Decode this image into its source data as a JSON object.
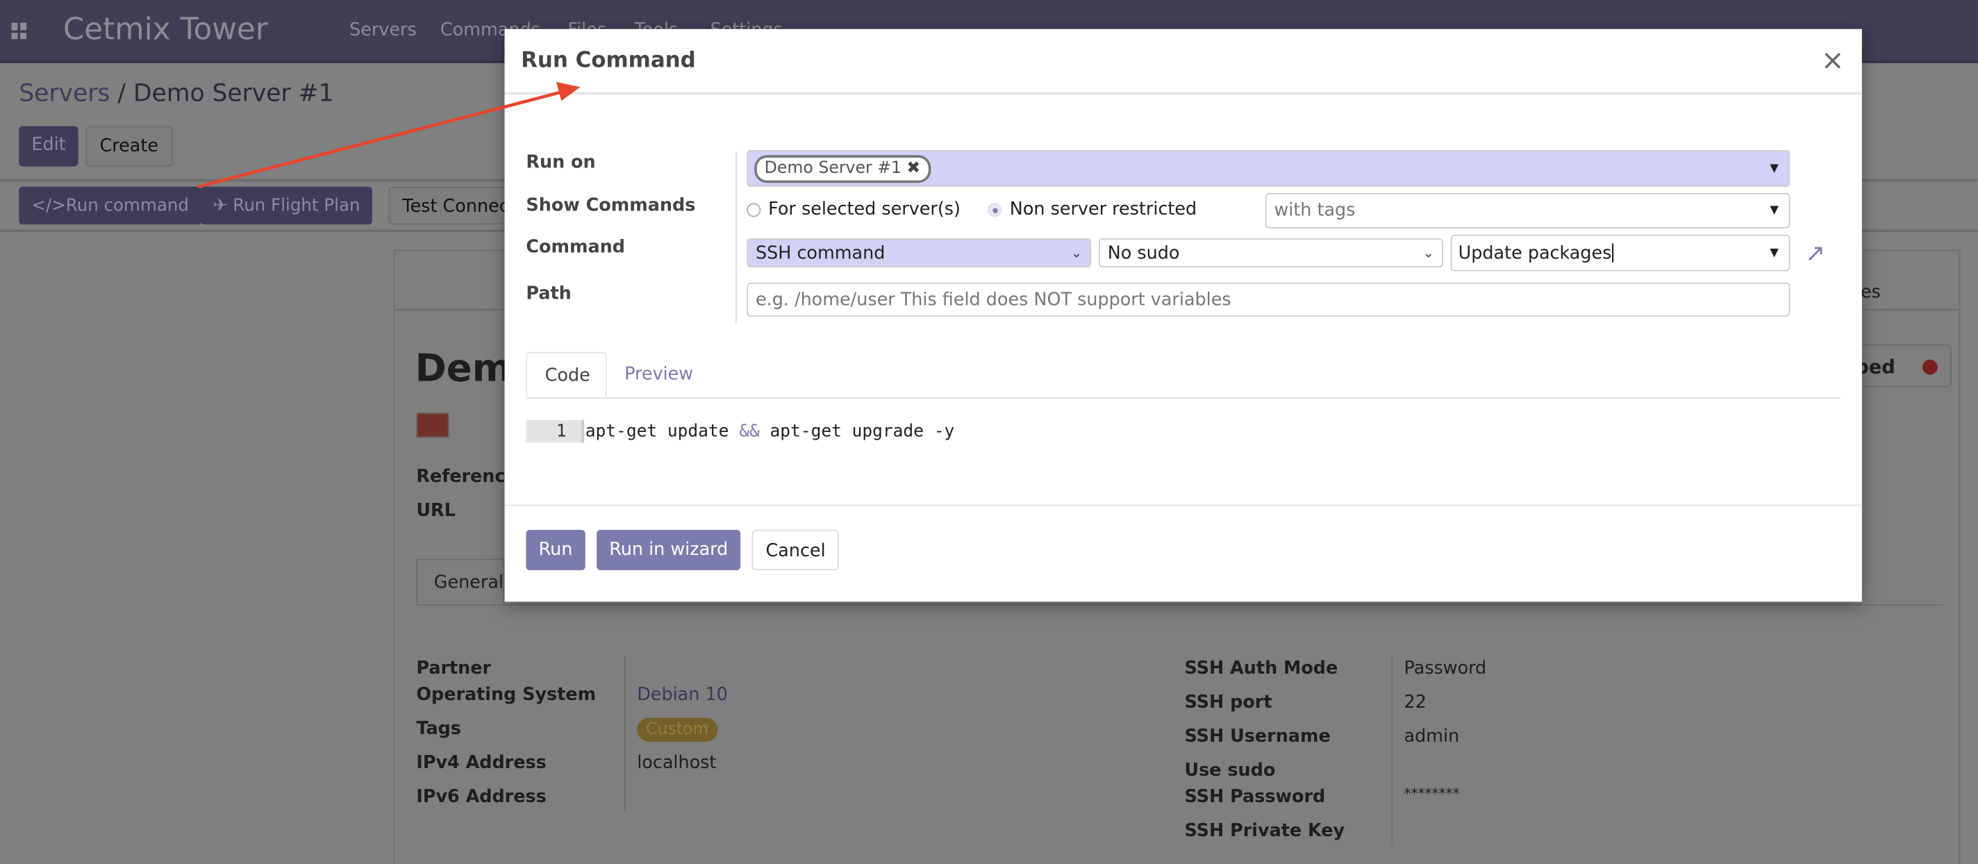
{
  "app": {
    "name": "Cetmix Tower",
    "menu": [
      "Servers",
      "Commands",
      "Files",
      "Tools",
      "Settings"
    ]
  },
  "breadcrumb": {
    "parent": "Servers",
    "separator": "/",
    "current": "Demo Server #1"
  },
  "toolbar": {
    "edit": "Edit",
    "create": "Create"
  },
  "actions": {
    "run_command": "Run command",
    "run_flight_plan": "Run Flight Plan",
    "test_connection": "Test Connec"
  },
  "background_form": {
    "title_partial": "Demo",
    "status_partial": "pped",
    "status_color": "#8b1a1a",
    "tab_partial": "es",
    "fields_top": [
      "Reference",
      "URL"
    ],
    "tab_general": "General",
    "left": [
      {
        "label": "Partner",
        "value": ""
      },
      {
        "label": "Operating System",
        "value": "Debian 10"
      },
      {
        "label": "Tags",
        "value": "Custom"
      },
      {
        "label": "IPv4 Address",
        "value": "localhost"
      },
      {
        "label": "IPv6 Address",
        "value": ""
      }
    ],
    "right": [
      {
        "label": "SSH Auth Mode",
        "value": "Password"
      },
      {
        "label": "SSH port",
        "value": "22"
      },
      {
        "label": "SSH Username",
        "value": "admin"
      },
      {
        "label": "Use sudo",
        "value": ""
      },
      {
        "label": "SSH Password",
        "value": "********"
      },
      {
        "label": "SSH Private Key",
        "value": ""
      }
    ]
  },
  "modal": {
    "title": "Run Command",
    "close": "×",
    "labels": {
      "run_on": "Run on",
      "show_commands": "Show Commands",
      "command": "Command",
      "path": "Path"
    },
    "run_on_tag": "Demo Server #1",
    "show_commands": {
      "option1": "For selected server(s)",
      "option2": "Non server restricted",
      "selected": "Non server restricted",
      "tags_placeholder": "with tags"
    },
    "command": {
      "type": "SSH command",
      "sudo": "No sudo",
      "name": "Update packages"
    },
    "path_placeholder": "e.g. /home/user This field does NOT support variables",
    "tabs": [
      "Code",
      "Preview"
    ],
    "active_tab": "Code",
    "code": {
      "line": "1",
      "parts": [
        "apt-get update ",
        "&&",
        " apt-get upgrade -y"
      ]
    },
    "buttons": {
      "run": "Run",
      "run_wizard": "Run in wizard",
      "cancel": "Cancel"
    }
  },
  "colors": {
    "accent": "#7c7bad",
    "required_field": "#d2d2f7",
    "annotation_arrow": "#e8452c"
  }
}
